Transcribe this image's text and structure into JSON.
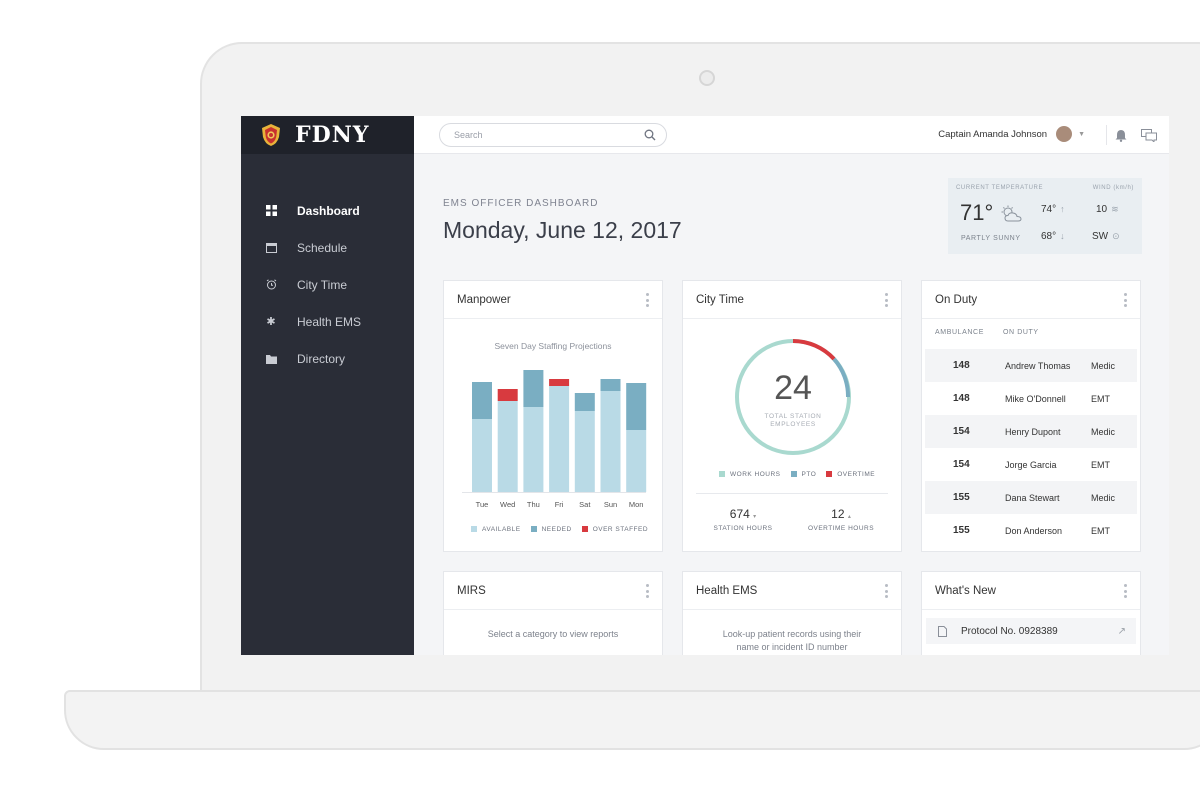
{
  "brand": {
    "name": "FDNY"
  },
  "sidebar": {
    "items": [
      {
        "label": "Dashboard",
        "icon": "grid-icon",
        "active": true
      },
      {
        "label": "Schedule",
        "icon": "calendar-icon"
      },
      {
        "label": "City Time",
        "icon": "alarm-clock-icon"
      },
      {
        "label": "Health EMS",
        "icon": "asterisk-icon"
      },
      {
        "label": "Directory",
        "icon": "folder-icon"
      }
    ]
  },
  "topbar": {
    "search_placeholder": "Search",
    "user_name": "Captain Amanda Johnson"
  },
  "header": {
    "eyebrow": "EMS OFFICER DASHBOARD",
    "date": "Monday, June 12, 2017"
  },
  "weather": {
    "current_label": "CURRENT TEMPERATURE",
    "wind_label": "WIND (km/h)",
    "temp": "71°",
    "condition": "PARTLY SUNNY",
    "high": "74°",
    "low": "68°",
    "wind_speed": "10",
    "wind_dir": "SW"
  },
  "manpower": {
    "title": "Manpower",
    "legend": [
      "AVAILABLE",
      "NEEDED",
      "OVER STAFFED"
    ],
    "colors": {
      "available": "#b9dae6",
      "needed": "#7aaec2",
      "over": "#d83a3f"
    }
  },
  "chart_data": {
    "type": "bar",
    "title": "Seven Day Staffing Projections",
    "categories": [
      "Tue",
      "Wed",
      "Thu",
      "Fri",
      "Sat",
      "Sun",
      "Mon"
    ],
    "series": [
      {
        "name": "AVAILABLE",
        "values": [
          73,
          91,
          85,
          106,
          81,
          101,
          62
        ]
      },
      {
        "name": "NEEDED",
        "values": [
          37,
          0,
          37,
          0,
          18,
          12,
          47
        ]
      },
      {
        "name": "OVER STAFFED",
        "values": [
          0,
          12,
          0,
          7,
          0,
          0,
          0
        ]
      }
    ],
    "ylim": [
      0,
      125
    ]
  },
  "city_time": {
    "title": "City Time",
    "total": "24",
    "total_label_1": "TOTAL STATION",
    "total_label_2": "EMPLOYEES",
    "legend": [
      "WORK HOURS",
      "PTO",
      "OVERTIME"
    ],
    "colors": {
      "work": "#a9d9cf",
      "pto": "#7aaec2",
      "overtime": "#d83a3f"
    },
    "station_hours": "674",
    "station_hours_label": "STATION HOURS",
    "overtime_hours": "12",
    "overtime_hours_label": "OVERTIME HOURS"
  },
  "on_duty": {
    "title": "On Duty",
    "col_ambulance": "AMBULANCE",
    "col_on_duty": "ON DUTY",
    "rows": [
      {
        "num": "148",
        "name": "Andrew Thomas",
        "role": "Medic"
      },
      {
        "num": "148",
        "name": "Mike O'Donnell",
        "role": "EMT"
      },
      {
        "num": "154",
        "name": "Henry Dupont",
        "role": "Medic"
      },
      {
        "num": "154",
        "name": "Jorge Garcia",
        "role": "EMT"
      },
      {
        "num": "155",
        "name": "Dana Stewart",
        "role": "Medic"
      },
      {
        "num": "155",
        "name": "Don Anderson",
        "role": "EMT"
      }
    ]
  },
  "mirs": {
    "title": "MIRS",
    "hint": "Select a category to view reports"
  },
  "health_ems": {
    "title": "Health EMS",
    "hint_1": "Look-up patient records using their",
    "hint_2": "name or incident ID number"
  },
  "whats_new": {
    "title": "What's New",
    "item": "Protocol No. 0928389"
  }
}
